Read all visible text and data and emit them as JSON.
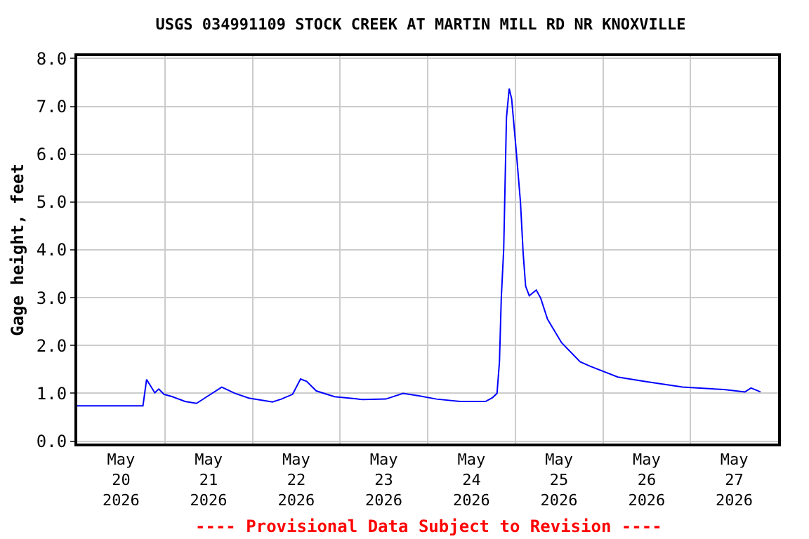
{
  "chart_data": {
    "type": "line",
    "title": "USGS 034991109 STOCK CREEK AT MARTIN MILL RD NR KNOXVILLE",
    "ylabel": "Gage height, feet",
    "annotations": [
      "---- Provisional Data Subject to Revision ----"
    ],
    "x": [
      "2026-05-20T00:00",
      "2026-05-20T18:00",
      "2026-05-20T19:00",
      "2026-05-20T21:15",
      "2026-05-20T22:20",
      "2026-05-20T23:45",
      "2026-05-21T02:05",
      "2026-05-21T05:30",
      "2026-05-21T08:40",
      "2026-05-21T11:30",
      "2026-05-21T15:35",
      "2026-05-21T19:10",
      "2026-05-21T23:00",
      "2026-05-22T05:30",
      "2026-05-22T07:55",
      "2026-05-22T11:00",
      "2026-05-22T13:10",
      "2026-05-22T14:50",
      "2026-05-22T17:30",
      "2026-05-22T22:30",
      "2026-05-23T06:15",
      "2026-05-23T12:30",
      "2026-05-23T17:15",
      "2026-05-23T21:20",
      "2026-05-24T02:25",
      "2026-05-24T08:50",
      "2026-05-24T15:50",
      "2026-05-24T17:45",
      "2026-05-24T19:00",
      "2026-05-24T19:40",
      "2026-05-24T20:10",
      "2026-05-24T20:50",
      "2026-05-24T21:35",
      "2026-05-24T22:20",
      "2026-05-24T23:00",
      "2026-05-25T00:15",
      "2026-05-25T01:25",
      "2026-05-25T02:10",
      "2026-05-25T02:50",
      "2026-05-25T03:50",
      "2026-05-25T05:45",
      "2026-05-25T06:58",
      "2026-05-25T08:50",
      "2026-05-25T12:40",
      "2026-05-25T17:45",
      "2026-05-25T20:25",
      "2026-05-26T04:05",
      "2026-05-26T11:30",
      "2026-05-26T21:50",
      "2026-05-27T09:10",
      "2026-05-27T14:55",
      "2026-05-27T16:35",
      "2026-05-27T19:10"
    ],
    "series": [
      {
        "color": "#0000ff",
        "values": [
          0.74,
          0.74,
          1.29,
          1.01,
          1.09,
          0.98,
          0.93,
          0.83,
          0.79,
          0.93,
          1.13,
          1.0,
          0.9,
          0.82,
          0.88,
          0.98,
          1.3,
          1.25,
          1.05,
          0.93,
          0.87,
          0.88,
          1.0,
          0.95,
          0.88,
          0.83,
          0.83,
          0.91,
          1.0,
          1.66,
          2.99,
          4.02,
          6.76,
          7.37,
          7.16,
          6.08,
          5.0,
          3.92,
          3.24,
          3.04,
          3.16,
          2.99,
          2.55,
          2.06,
          1.66,
          1.57,
          1.34,
          1.25,
          1.13,
          1.08,
          1.03,
          1.11,
          1.03
        ]
      }
    ],
    "xlim": [
      "2026-05-20T00:00",
      "2026-05-28T00:00"
    ],
    "xticks": [
      {
        "value": "2026-05-20T12:00",
        "label": "May\n20\n2026"
      },
      {
        "value": "2026-05-21T12:00",
        "label": "May\n21\n2026"
      },
      {
        "value": "2026-05-22T12:00",
        "label": "May\n22\n2026"
      },
      {
        "value": "2026-05-23T12:00",
        "label": "May\n23\n2026"
      },
      {
        "value": "2026-05-24T12:00",
        "label": "May\n24\n2026"
      },
      {
        "value": "2026-05-25T12:00",
        "label": "May\n25\n2026"
      },
      {
        "value": "2026-05-26T12:00",
        "label": "May\n26\n2026"
      },
      {
        "value": "2026-05-27T12:00",
        "label": "May\n27\n2026"
      },
      {
        "value": "2026-05-21T00:00",
        "label": null
      },
      {
        "value": "2026-05-22T00:00",
        "label": null
      },
      {
        "value": "2026-05-23T00:00",
        "label": null
      },
      {
        "value": "2026-05-24T00:00",
        "label": null
      },
      {
        "value": "2026-05-25T00:00",
        "label": null
      },
      {
        "value": "2026-05-26T00:00",
        "label": null
      },
      {
        "value": "2026-05-27T00:00",
        "label": null
      }
    ],
    "ylim": [
      -0.05,
      8.05
    ],
    "yticks": [
      {
        "value": 0,
        "label": "0.0"
      },
      {
        "value": 1,
        "label": "1.0"
      },
      {
        "value": 2,
        "label": "2.0"
      },
      {
        "value": 3,
        "label": "3.0"
      },
      {
        "value": 4,
        "label": "4.0"
      },
      {
        "value": 5,
        "label": "5.0"
      },
      {
        "value": 6,
        "label": "6.0"
      },
      {
        "value": 7,
        "label": "7.0"
      },
      {
        "value": 8,
        "label": "8.0"
      }
    ],
    "grid": true,
    "marker": "none",
    "line_style": "solid"
  }
}
